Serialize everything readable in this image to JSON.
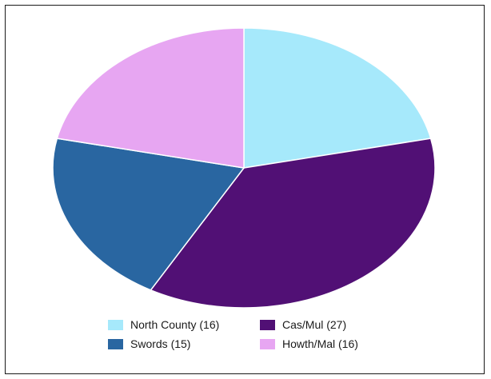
{
  "chart_data": {
    "type": "pie",
    "title": "",
    "slices": [
      {
        "label": "North County (16)",
        "value": 16,
        "color": "#A6E9FB"
      },
      {
        "label": "Cas/Mul (27)",
        "value": 27,
        "color": "#511075"
      },
      {
        "label": "Swords (15)",
        "value": 15,
        "color": "#2966A1"
      },
      {
        "label": "Howth/Mal (16)",
        "value": 16,
        "color": "#E7A6F2"
      }
    ],
    "legend_position": "bottom"
  }
}
